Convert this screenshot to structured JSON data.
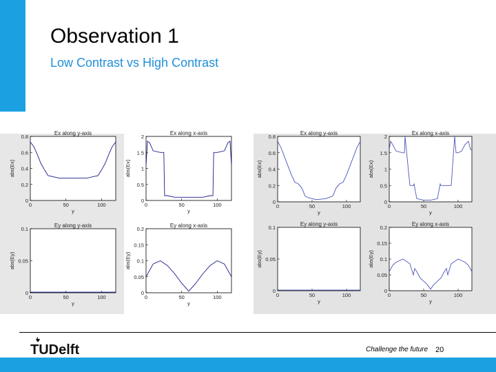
{
  "slide": {
    "title": "Observation 1",
    "subtitle": "Low Contrast vs High Contrast",
    "footer": {
      "tagline": "Challenge the future",
      "page": "20",
      "logo_text": "TUDelft"
    },
    "accent_color": "#1ba1e2"
  },
  "chart_data": [
    {
      "type": "line",
      "panel": "left",
      "title": "Ex along y-axis",
      "xlabel": "y",
      "ylabel": "abs(Ex)",
      "xlim": [
        0,
        120
      ],
      "ylim": [
        0,
        0.8
      ],
      "xticks": [
        "0",
        "50",
        "100"
      ],
      "yticks": [
        "0",
        "0.2",
        "0.4",
        "0.6",
        "0.8"
      ],
      "series": [
        {
          "x": [
            0,
            5,
            10,
            15,
            20,
            25,
            30,
            40,
            50,
            60,
            70,
            80,
            90,
            95,
            100,
            105,
            110,
            115,
            120
          ],
          "y": [
            0.73,
            0.67,
            0.57,
            0.46,
            0.38,
            0.31,
            0.3,
            0.28,
            0.28,
            0.28,
            0.28,
            0.28,
            0.3,
            0.31,
            0.38,
            0.46,
            0.57,
            0.67,
            0.73
          ]
        }
      ]
    },
    {
      "type": "line",
      "panel": "left",
      "title": "Ex along x-axis",
      "xlabel": "y",
      "ylabel": "abs(Ex)",
      "xlim": [
        0,
        120
      ],
      "ylim": [
        0,
        2
      ],
      "xticks": [
        "0",
        "50",
        "100"
      ],
      "yticks": [
        "0",
        "0.5",
        "1",
        "1.5",
        "2"
      ],
      "series": [
        {
          "x": [
            0,
            2,
            5,
            10,
            20,
            25,
            26,
            30,
            40,
            50,
            60,
            70,
            80,
            90,
            94,
            95,
            100,
            110,
            115,
            118,
            120
          ],
          "y": [
            1.1,
            1.85,
            1.8,
            1.55,
            1.5,
            1.5,
            0.15,
            0.15,
            0.1,
            0.1,
            0.1,
            0.1,
            0.1,
            0.15,
            0.15,
            1.5,
            1.5,
            1.55,
            1.8,
            1.85,
            1.1
          ]
        }
      ]
    },
    {
      "type": "line",
      "panel": "left",
      "title": "Ey along y-axis",
      "xlabel": "y",
      "ylabel": "abs(Ey)",
      "xlim": [
        0,
        120
      ],
      "ylim": [
        0,
        0.1
      ],
      "xticks": [
        "0",
        "50",
        "100"
      ],
      "yticks": [
        "0",
        "0.05",
        "0.1"
      ],
      "series": [
        {
          "x": [
            0,
            120
          ],
          "y": [
            0.001,
            0.001
          ]
        }
      ]
    },
    {
      "type": "line",
      "panel": "left",
      "title": "Ey along x-axis",
      "xlabel": "y",
      "ylabel": "abs(Ey)",
      "xlim": [
        0,
        120
      ],
      "ylim": [
        0,
        0.2
      ],
      "xticks": [
        "0",
        "50",
        "100"
      ],
      "yticks": [
        "0",
        "0.05",
        "0.1",
        "0.15",
        "0.2"
      ],
      "series": [
        {
          "x": [
            0,
            5,
            10,
            20,
            30,
            40,
            50,
            60,
            70,
            80,
            90,
            100,
            110,
            115,
            120
          ],
          "y": [
            0.05,
            0.07,
            0.09,
            0.1,
            0.085,
            0.06,
            0.03,
            0.005,
            0.03,
            0.06,
            0.085,
            0.1,
            0.09,
            0.07,
            0.05
          ]
        }
      ]
    },
    {
      "type": "line",
      "panel": "right",
      "title": "Ex along y-axis",
      "xlabel": "y",
      "ylabel": "abs(Ex)",
      "xlim": [
        0,
        120
      ],
      "ylim": [
        0,
        0.8
      ],
      "xticks": [
        "0",
        "50",
        "100"
      ],
      "yticks": [
        "0",
        "0.2",
        "0.4",
        "0.6",
        "0.8"
      ],
      "series": [
        {
          "x": [
            0,
            5,
            10,
            15,
            20,
            25,
            30,
            35,
            40,
            45,
            50,
            55,
            60,
            70,
            80,
            85,
            90,
            95,
            100,
            105,
            110,
            115,
            120
          ],
          "y": [
            0.74,
            0.66,
            0.55,
            0.44,
            0.33,
            0.24,
            0.22,
            0.17,
            0.07,
            0.05,
            0.04,
            0.03,
            0.03,
            0.04,
            0.07,
            0.17,
            0.22,
            0.24,
            0.33,
            0.44,
            0.55,
            0.66,
            0.74
          ]
        }
      ]
    },
    {
      "type": "line",
      "panel": "right",
      "title": "Ex along x-axis",
      "xlabel": "y",
      "ylabel": "abs(Ex)",
      "xlim": [
        0,
        120
      ],
      "ylim": [
        0,
        2
      ],
      "xticks": [
        "0",
        "50",
        "100"
      ],
      "yticks": [
        "0",
        "0.5",
        "1",
        "1.5",
        "2"
      ],
      "series": [
        {
          "x": [
            0,
            2,
            5,
            10,
            20,
            22,
            23,
            30,
            35,
            36,
            40,
            50,
            60,
            70,
            74,
            75,
            80,
            85,
            90,
            95,
            97,
            98,
            100,
            105,
            110,
            115,
            118,
            120
          ],
          "y": [
            1.6,
            1.85,
            1.75,
            1.55,
            1.5,
            1.5,
            2.0,
            0.5,
            0.5,
            0.55,
            0.1,
            0.05,
            0.05,
            0.1,
            0.55,
            0.5,
            0.5,
            0.5,
            0.5,
            2.0,
            1.5,
            1.5,
            1.5,
            1.55,
            1.75,
            1.85,
            1.6,
            1.6
          ]
        }
      ]
    },
    {
      "type": "line",
      "panel": "right",
      "title": "Ey along y-axis",
      "xlabel": "y",
      "ylabel": "abs(Ey)",
      "xlim": [
        0,
        120
      ],
      "ylim": [
        0,
        0.1
      ],
      "xticks": [
        "0",
        "50",
        "100"
      ],
      "yticks": [
        "0",
        "0.05",
        "0.1"
      ],
      "series": [
        {
          "x": [
            0,
            120
          ],
          "y": [
            0.001,
            0.001
          ]
        }
      ]
    },
    {
      "type": "line",
      "panel": "right",
      "title": "Ey along x-axis",
      "xlabel": "y",
      "ylabel": "abs(Ey)",
      "xlim": [
        0,
        120
      ],
      "ylim": [
        0,
        0.2
      ],
      "xticks": [
        "0",
        "50",
        "100"
      ],
      "yticks": [
        "0",
        "0.05",
        "0.1",
        "0.15",
        "0.2"
      ],
      "series": [
        {
          "x": [
            0,
            5,
            10,
            20,
            30,
            35,
            37,
            40,
            45,
            50,
            55,
            60,
            65,
            70,
            75,
            80,
            83,
            85,
            90,
            100,
            110,
            115,
            120
          ],
          "y": [
            0.06,
            0.08,
            0.09,
            0.1,
            0.085,
            0.05,
            0.07,
            0.06,
            0.04,
            0.03,
            0.02,
            0.005,
            0.02,
            0.03,
            0.04,
            0.06,
            0.07,
            0.05,
            0.085,
            0.1,
            0.09,
            0.08,
            0.06
          ]
        }
      ]
    }
  ]
}
